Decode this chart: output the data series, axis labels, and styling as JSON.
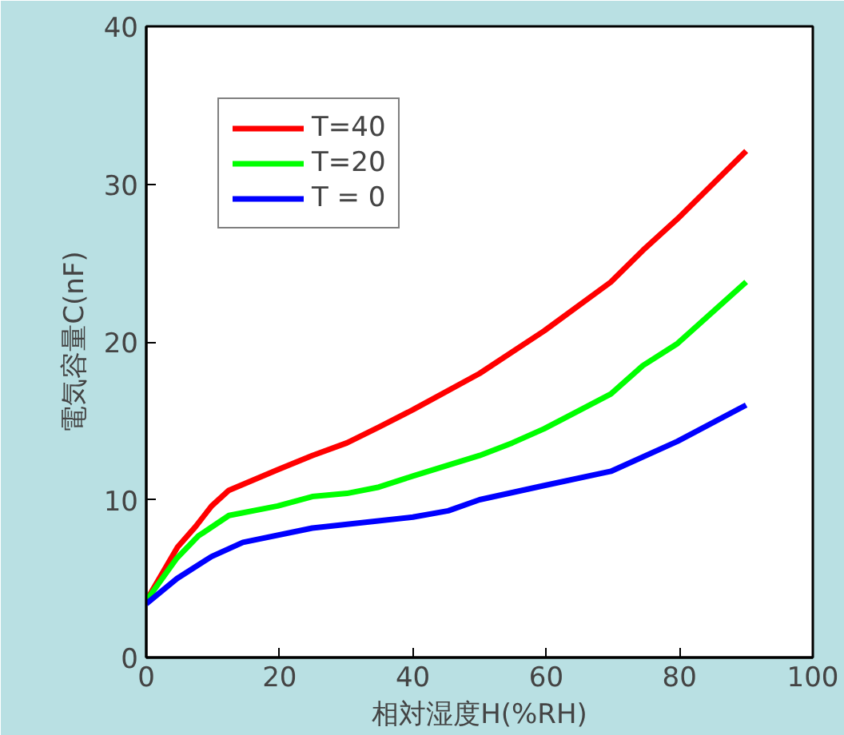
{
  "chart_data": {
    "type": "line",
    "xlabel": "相対湿度H(%RH)",
    "ylabel": "電気容量C(nF)",
    "xlim": [
      0,
      100
    ],
    "ylim": [
      0,
      40
    ],
    "xticks": [
      0,
      20,
      40,
      60,
      80,
      100
    ],
    "yticks": [
      0,
      10,
      20,
      30,
      40
    ],
    "grid": false,
    "legend": "top left",
    "marker": "none",
    "line_style": "solid",
    "series": [
      {
        "name": "T=40",
        "color": "#ff0000",
        "x": [
          0,
          4.7,
          7.4,
          9.8,
          12.4,
          19.7,
          24.9,
          30.1,
          34.9,
          40,
          50,
          59.7,
          69.7,
          74.5,
          79.7,
          90
        ],
        "values": [
          3.6,
          7.0,
          8.3,
          9.6,
          10.6,
          11.9,
          12.8,
          13.6,
          14.6,
          15.7,
          18.0,
          20.7,
          23.8,
          25.8,
          27.8,
          32.1
        ]
      },
      {
        "name": "T=20",
        "color": "#00ff00",
        "x": [
          0,
          4.6,
          7.8,
          12.4,
          19.7,
          24.9,
          30.1,
          34.9,
          40,
          50,
          54.9,
          59.7,
          69.7,
          74.5,
          79.7,
          90
        ],
        "values": [
          3.6,
          6.3,
          7.7,
          9.0,
          9.6,
          10.2,
          10.4,
          10.8,
          11.5,
          12.8,
          13.6,
          14.5,
          16.7,
          18.5,
          19.9,
          23.8
        ]
      },
      {
        "name": "T = 0",
        "color": "#0000ff",
        "x": [
          0,
          4.6,
          9.8,
          14.5,
          24.9,
          40,
          45.3,
          50,
          59.7,
          69.7,
          79.7,
          90
        ],
        "values": [
          3.4,
          5.0,
          6.4,
          7.3,
          8.2,
          8.9,
          9.3,
          10.0,
          10.9,
          11.8,
          13.7,
          16.0
        ]
      }
    ]
  }
}
